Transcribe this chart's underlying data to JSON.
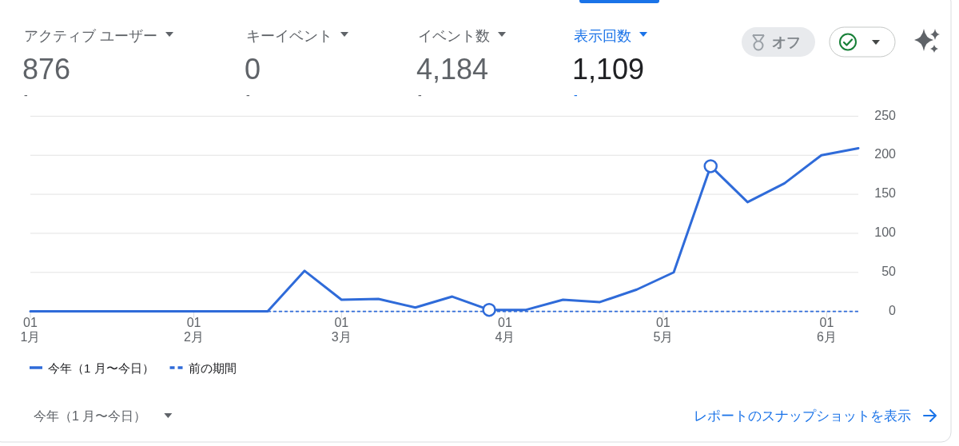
{
  "chart_data": [
    {
      "type": "other",
      "categories": [
        "アクティブ ユーザー",
        "キーイベント",
        "イベント数",
        "表示回数"
      ],
      "values": [
        876,
        0,
        4184,
        1109
      ],
      "value_labels": [
        "876",
        "0",
        "4,184",
        "1,109"
      ],
      "colors": [
        "#5f6368",
        "#5f6368",
        "#5f6368",
        "#1a73e8"
      ],
      "annotations": [
        "-",
        "-",
        "-",
        "-",
        "オフ"
      ]
    },
    {
      "type": "line",
      "x": [
        "--01-01",
        "--01-04",
        "--01-11",
        "--01-18",
        "--01-25",
        "--02-01",
        "--02-08",
        "--02-15",
        "--02-22",
        "--03-01",
        "--03-08",
        "--03-15",
        "--03-22",
        "--03-29",
        "--04-05",
        "--04-12",
        "--04-19",
        "--04-26",
        "--05-03",
        "--05-10",
        "--05-17",
        "--05-24",
        "--05-31",
        "--06-07"
      ],
      "series": [
        {
          "name": "今年（1 月〜今日）",
          "color": "#2f6bd9",
          "line_style": "solid",
          "values": [
            0,
            0,
            0,
            0,
            0,
            0,
            0,
            0,
            52,
            15,
            16,
            5,
            19,
            2,
            2,
            15,
            12,
            28,
            50,
            186,
            140,
            164,
            200,
            209
          ]
        },
        {
          "name": "前の期間",
          "color": "#2f6bd9",
          "line_style": "dashed",
          "values": [
            null,
            null,
            null,
            null,
            null,
            null,
            null,
            0,
            0,
            0,
            0,
            0,
            0,
            0,
            0,
            0,
            0,
            0,
            0,
            0,
            0,
            0,
            0,
            0
          ]
        },
        {
          "type": "scatter",
          "color": "#2f6bd9",
          "marker": "circle",
          "x": [
            "--03-29",
            "--05-10"
          ],
          "values": [
            2,
            186
          ]
        }
      ],
      "xlim": [
        "--01-01",
        "--06-07"
      ],
      "xticks": [
        {
          "value": "--01-01",
          "label": "01\n1月"
        },
        {
          "value": "--02-01",
          "label": "01\n2月"
        },
        {
          "value": "--03-01",
          "label": "01\n3月"
        },
        {
          "value": "--04-01",
          "label": "01\n4月"
        },
        {
          "value": "--05-01",
          "label": "01\n5月"
        },
        {
          "value": "--06-01",
          "label": "01\n6月"
        }
      ],
      "ylim": [
        0,
        250
      ],
      "yticks": [
        0,
        50,
        100,
        150,
        200,
        250
      ],
      "grid": "y",
      "legend": "bottom left",
      "marker": "none",
      "annotations": [
        "今年（1 月〜今日）",
        "レポートのスナップショットを表示"
      ]
    }
  ]
}
